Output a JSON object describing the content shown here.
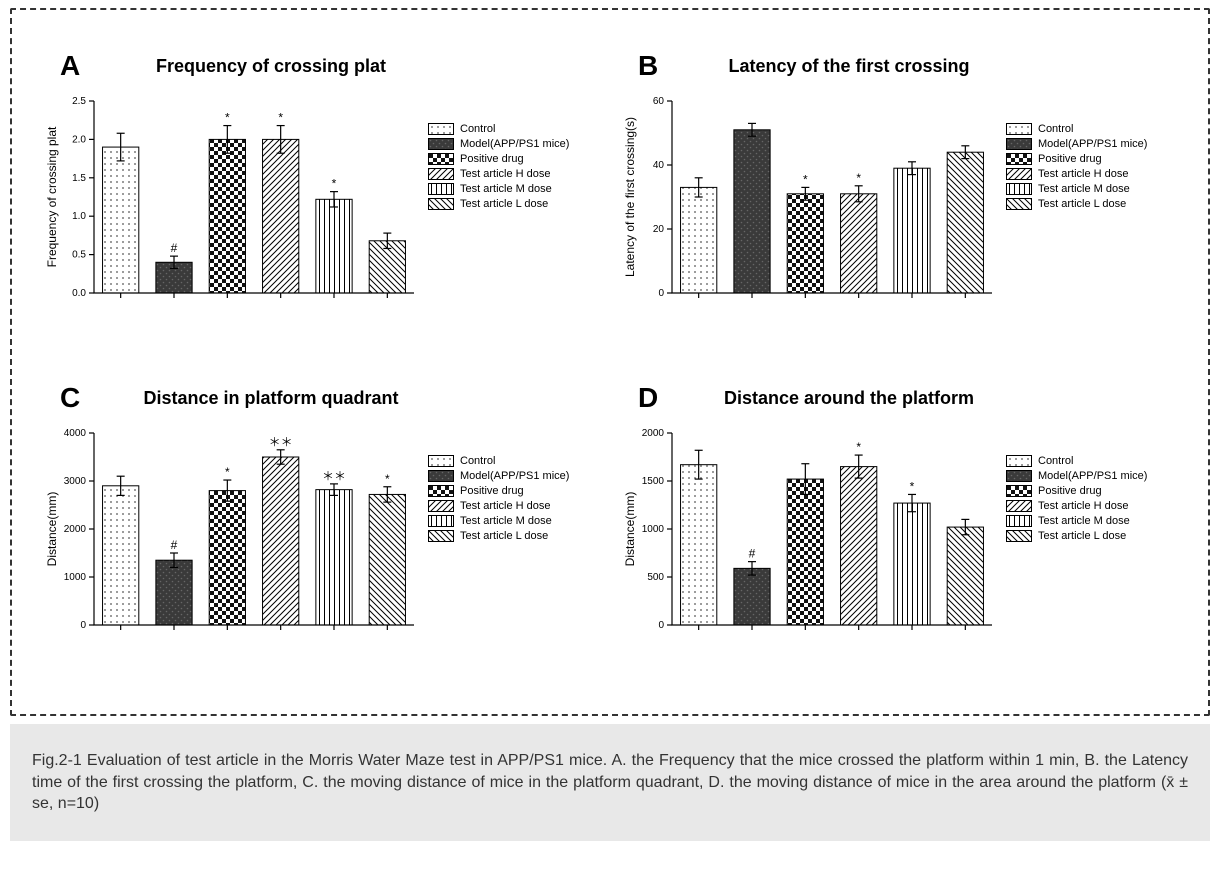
{
  "frame": {
    "border_color": "#333333",
    "background_color": "#ffffff"
  },
  "caption": {
    "text": "Fig.2-1 Evaluation of test article in the Morris Water Maze test in APP/PS1 mice. A. the Frequency that the mice crossed the platform within 1 min, B. the Latency time of the first crossing the platform, C. the moving distance of mice in the platform quadrant, D. the moving distance of mice in the area  around the platform (x̄ ± se, n=10)",
    "background_color": "#e8e8e8",
    "text_color": "#333333",
    "fontsize": 16
  },
  "legend_items": [
    {
      "label": "Control",
      "pattern": "dots"
    },
    {
      "label": "Model(APP/PS1 mice)",
      "pattern": "dark"
    },
    {
      "label": "Positive drug",
      "pattern": "checker"
    },
    {
      "label": "Test article H dose",
      "pattern": "diag"
    },
    {
      "label": "Test article M dose",
      "pattern": "vlines"
    },
    {
      "label": "Test article L dose",
      "pattern": "diag2"
    }
  ],
  "common_style": {
    "bar_border_color": "#000000",
    "error_cap_width": 8,
    "error_line_width": 1.2,
    "axis_color": "#000000",
    "tick_length": 5,
    "axis_width": 1.2,
    "title_fontsize": 18,
    "tick_fontsize": 10,
    "ylabel_fontsize": 12,
    "annotation_fontsize": 12,
    "bar_width_ratio": 0.68,
    "panel_letter_fontsize": 28
  },
  "panels": {
    "A": {
      "letter": "A",
      "title": "Frequency of crossing plat",
      "type": "bar",
      "ylabel": "Frequency of crossing plat",
      "ylim": [
        0,
        2.5
      ],
      "ytick_step": 0.5,
      "categories": [
        "Control",
        "Model",
        "Positive drug",
        "H dose",
        "M dose",
        "L dose"
      ],
      "values": [
        1.9,
        0.4,
        2.0,
        2.0,
        1.22,
        0.68
      ],
      "errors": [
        0.18,
        0.08,
        0.18,
        0.18,
        0.1,
        0.1
      ],
      "annotations": [
        "",
        "#",
        "*",
        "*",
        "*",
        ""
      ],
      "patterns": [
        "dots",
        "dark",
        "checker",
        "diag",
        "vlines",
        "diag2"
      ]
    },
    "B": {
      "letter": "B",
      "title": "Latency of the first crossing",
      "type": "bar",
      "ylabel": "Latency of the first crossing(s)",
      "ylim": [
        0,
        60
      ],
      "ytick_step": 20,
      "categories": [
        "Control",
        "Model",
        "Positive drug",
        "H dose",
        "M dose",
        "L dose"
      ],
      "values": [
        33,
        51,
        31,
        31,
        39,
        44
      ],
      "errors": [
        3.0,
        2.0,
        2.0,
        2.5,
        2.0,
        2.0
      ],
      "annotations": [
        "",
        "",
        "*",
        "*",
        "",
        ""
      ],
      "patterns": [
        "dots",
        "dark",
        "checker",
        "diag",
        "vlines",
        "diag2"
      ]
    },
    "C": {
      "letter": "C",
      "title": "Distance in platform quadrant",
      "type": "bar",
      "ylabel": "Distance(mm)",
      "ylim": [
        0,
        4000
      ],
      "ytick_step": 1000,
      "categories": [
        "Control",
        "Model",
        "Positive drug",
        "H dose",
        "M dose",
        "L dose"
      ],
      "values": [
        2900,
        1350,
        2800,
        3500,
        2820,
        2720
      ],
      "errors": [
        200,
        150,
        220,
        150,
        120,
        160
      ],
      "annotations": [
        "",
        "#",
        "*",
        "＊＊",
        "＊＊",
        "*"
      ],
      "patterns": [
        "dots",
        "dark",
        "checker",
        "diag",
        "vlines",
        "diag2"
      ]
    },
    "D": {
      "letter": "D",
      "title": "Distance around the platform",
      "type": "bar",
      "ylabel": "Distance(mm)",
      "ylim": [
        0,
        2000
      ],
      "ytick_step": 500,
      "categories": [
        "Control",
        "Model",
        "Positive drug",
        "H dose",
        "M dose",
        "L dose"
      ],
      "values": [
        1670,
        590,
        1520,
        1650,
        1270,
        1020
      ],
      "errors": [
        150,
        70,
        160,
        120,
        90,
        80
      ],
      "annotations": [
        "",
        "#",
        "",
        "*",
        "*",
        ""
      ],
      "patterns": [
        "dots",
        "dark",
        "checker",
        "diag",
        "vlines",
        "diag2"
      ]
    }
  }
}
